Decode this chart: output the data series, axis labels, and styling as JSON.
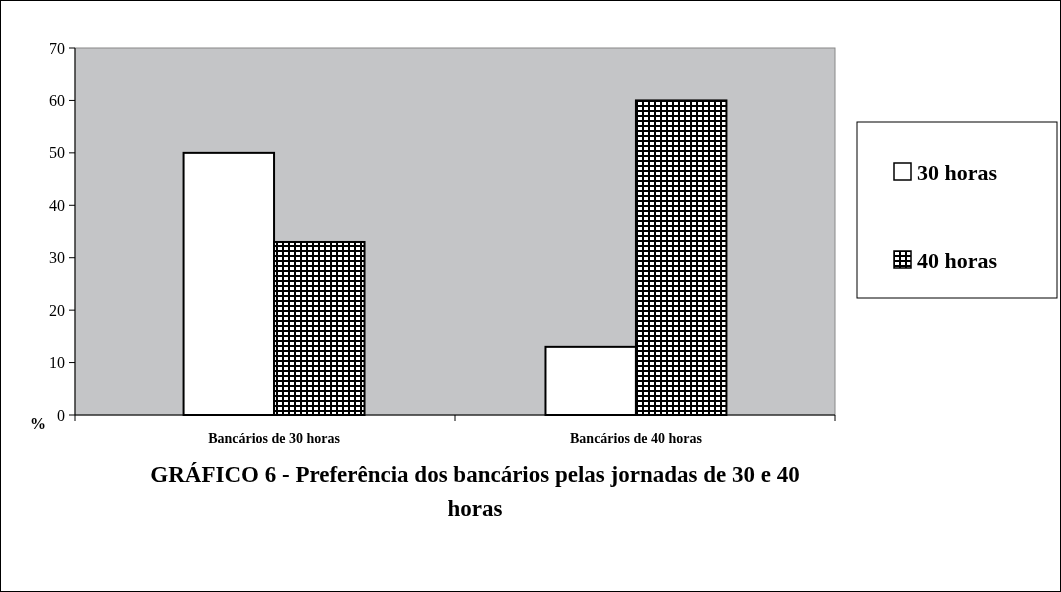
{
  "chart_data": {
    "type": "bar",
    "title": "GRÁFICO 6 - Preferência dos bancários pelas jornadas de 30 e 40 horas",
    "ylabel": "%",
    "categories": [
      "Bancários de 30 horas",
      "Bancários de 40 horas"
    ],
    "series": [
      {
        "name": "30 horas",
        "color": "#ffffff",
        "values": [
          50,
          13
        ]
      },
      {
        "name": "40 horas",
        "color": "#000000",
        "values": [
          33,
          60
        ]
      }
    ],
    "ylim": [
      0,
      70
    ],
    "yticks": [
      0,
      10,
      20,
      30,
      40,
      50,
      60,
      70
    ],
    "grid": false,
    "legend": "right"
  }
}
